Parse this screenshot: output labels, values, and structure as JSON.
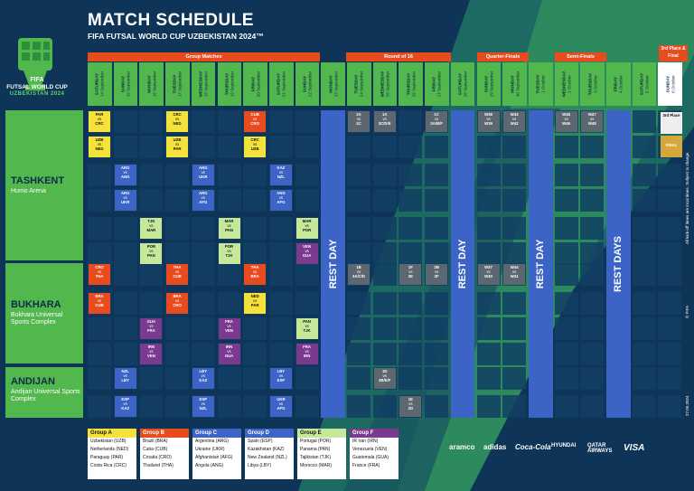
{
  "header": {
    "title": "MATCH SCHEDULE",
    "subtitle": "FIFA FUTSAL WORLD CUP UZBEKISTAN 2024™"
  },
  "logo": {
    "brand": "FIFA",
    "line1": "FUTSAL WORLD CUP",
    "line2": "UZBEKISTAN 2024"
  },
  "stages": {
    "group": "Group Matches",
    "r16": "Round of 16",
    "qf": "Quarter-Finals",
    "sf": "Semi-Finals",
    "final": "3rd Place & Final"
  },
  "days": [
    [
      "SATURDAY",
      "14 September"
    ],
    [
      "SUNDAY",
      "15 September"
    ],
    [
      "MONDAY",
      "16 September"
    ],
    [
      "TUESDAY",
      "17 September"
    ],
    [
      "WEDNESDAY",
      "18 September"
    ],
    [
      "THURSDAY",
      "19 September"
    ],
    [
      "FRIDAY",
      "20 September"
    ],
    [
      "SATURDAY",
      "21 September"
    ],
    [
      "SUNDAY",
      "22 September"
    ],
    [
      "MONDAY",
      "23 September"
    ],
    [
      "TUESDAY",
      "24 September"
    ],
    [
      "WEDNESDAY",
      "25 September"
    ],
    [
      "THURSDAY",
      "26 September"
    ],
    [
      "FRIDAY",
      "27 September"
    ],
    [
      "SATURDAY",
      "28 September"
    ],
    [
      "SUNDAY",
      "29 September"
    ],
    [
      "MONDAY",
      "30 September"
    ],
    [
      "TUESDAY",
      "1 October"
    ],
    [
      "WEDNESDAY",
      "2 October"
    ],
    [
      "THURSDAY",
      "3 October"
    ],
    [
      "FRIDAY",
      "4 October"
    ],
    [
      "SATURDAY",
      "5 October"
    ],
    [
      "SUNDAY",
      "6 October"
    ]
  ],
  "venues": [
    {
      "name": "TASHKENT",
      "sub": "Humo Arena"
    },
    {
      "name": "BUKHARA",
      "sub": "Bukhara Universal Sports Complex"
    },
    {
      "name": "ANDIJAN",
      "sub": "Andijan Universal Sports Complex"
    }
  ],
  "rest": {
    "day": "REST DAY",
    "days": "REST DAYS"
  },
  "colors": {
    "A": "#f4e23b",
    "B": "#e84b1e",
    "C": "#3c63c6",
    "D": "#3c63c6",
    "E": "#c5e89a",
    "F": "#7a3a8f",
    "KO": "#5c6770"
  },
  "matches": [
    {
      "d": 0,
      "r": 0,
      "t": "PAR vs CRC",
      "g": "A"
    },
    {
      "d": 0,
      "r": 1,
      "t": "UZB vs NED",
      "g": "A"
    },
    {
      "d": 3,
      "r": 0,
      "t": "CRC vs NED",
      "g": "A"
    },
    {
      "d": 3,
      "r": 1,
      "t": "UZB vs PAR",
      "g": "A"
    },
    {
      "d": 6,
      "r": 0,
      "t": "CUB vs CRO",
      "g": "B"
    },
    {
      "d": 6,
      "r": 1,
      "t": "CRC vs UZB",
      "g": "A"
    },
    {
      "d": 1,
      "r": 2,
      "t": "ARG vs ANG",
      "g": "C"
    },
    {
      "d": 1,
      "r": 3,
      "t": "ARG vs UKR",
      "g": "C"
    },
    {
      "d": 4,
      "r": 2,
      "t": "ANG vs UKR",
      "g": "C"
    },
    {
      "d": 4,
      "r": 3,
      "t": "ARG vs AFG",
      "g": "C"
    },
    {
      "d": 7,
      "r": 2,
      "t": "KAZ vs NZL",
      "g": "D"
    },
    {
      "d": 7,
      "r": 3,
      "t": "ANG vs AFG",
      "g": "C"
    },
    {
      "d": 2,
      "r": 4,
      "t": "TJK vs MAR",
      "g": "E"
    },
    {
      "d": 2,
      "r": 5,
      "t": "POR vs PAN",
      "g": "E"
    },
    {
      "d": 5,
      "r": 4,
      "t": "MAR vs PAN",
      "g": "E"
    },
    {
      "d": 5,
      "r": 5,
      "t": "POR vs TJK",
      "g": "E"
    },
    {
      "d": 8,
      "r": 4,
      "t": "MAR vs POR",
      "g": "E"
    },
    {
      "d": 8,
      "r": 5,
      "t": "VEN vs GUA",
      "g": "F"
    },
    {
      "d": 0,
      "r": 6,
      "t": "CRO vs THA",
      "g": "B"
    },
    {
      "d": 0,
      "r": 7,
      "t": "BRA vs CUB",
      "g": "B"
    },
    {
      "d": 3,
      "r": 6,
      "t": "THA vs CUB",
      "g": "B"
    },
    {
      "d": 3,
      "r": 7,
      "t": "BRA vs CRO",
      "g": "B"
    },
    {
      "d": 6,
      "r": 6,
      "t": "THA vs BRA",
      "g": "B"
    },
    {
      "d": 6,
      "r": 7,
      "t": "NED vs PAR",
      "g": "A"
    },
    {
      "d": 2,
      "r": 8,
      "t": "GUA vs FRA",
      "g": "F"
    },
    {
      "d": 2,
      "r": 9,
      "t": "IRN vs VEN",
      "g": "F"
    },
    {
      "d": 5,
      "r": 8,
      "t": "FRA vs VEN",
      "g": "F"
    },
    {
      "d": 5,
      "r": 9,
      "t": "IRN vs GUA",
      "g": "F"
    },
    {
      "d": 8,
      "r": 8,
      "t": "PAN vs TJK",
      "g": "E"
    },
    {
      "d": 8,
      "r": 9,
      "t": "FRA vs IRN",
      "g": "F"
    },
    {
      "d": 1,
      "r": 10,
      "t": "NZL vs LBY",
      "g": "D"
    },
    {
      "d": 1,
      "r": 11,
      "t": "ESP vs KAZ",
      "g": "D"
    },
    {
      "d": 4,
      "r": 10,
      "t": "LBY vs KAZ",
      "g": "D"
    },
    {
      "d": 4,
      "r": 11,
      "t": "ESP vs NZL",
      "g": "D"
    },
    {
      "d": 7,
      "r": 10,
      "t": "LBY vs ESP",
      "g": "D"
    },
    {
      "d": 7,
      "r": 11,
      "t": "UKR vs AFG",
      "g": "C"
    },
    {
      "d": 10,
      "r": 0,
      "t": "2A vs 2C",
      "g": "KO"
    },
    {
      "d": 11,
      "r": 0,
      "t": "1A vs 3C/D/E",
      "g": "KO"
    },
    {
      "d": 13,
      "r": 0,
      "t": "1C vs 3A/B/F",
      "g": "KO"
    },
    {
      "d": 15,
      "r": 0,
      "t": "W38 vs W39",
      "g": "KO"
    },
    {
      "d": 16,
      "r": 0,
      "t": "W43 vs W42",
      "g": "KO"
    },
    {
      "d": 18,
      "r": 0,
      "t": "W45 vs W46",
      "g": "KO"
    },
    {
      "d": 19,
      "r": 0,
      "t": "W47 vs W48",
      "g": "KO"
    },
    {
      "d": 10,
      "r": 6,
      "t": "1B vs 3A/C/D",
      "g": "KO"
    },
    {
      "d": 12,
      "r": 6,
      "t": "1F vs 2E",
      "g": "KO"
    },
    {
      "d": 13,
      "r": 6,
      "t": "2B vs 2F",
      "g": "KO"
    },
    {
      "d": 15,
      "r": 6,
      "t": "W37 vs W40",
      "g": "KO"
    },
    {
      "d": 16,
      "r": 6,
      "t": "W44 vs W41",
      "g": "KO"
    },
    {
      "d": 11,
      "r": 10,
      "t": "1D vs 3B/E/F",
      "g": "KO"
    },
    {
      "d": 12,
      "r": 11,
      "t": "1E vs 2D",
      "g": "KO"
    }
  ],
  "finals": {
    "third": "3rd Place",
    "final": "FINAL"
  },
  "groups": [
    {
      "name": "Group A",
      "teams": [
        "Uzbekistan (UZB)",
        "Netherlands (NED)",
        "Paraguay (PAR)",
        "Costa Rica (CRC)"
      ],
      "color": "#f4e23b"
    },
    {
      "name": "Group B",
      "teams": [
        "Brazil (BRA)",
        "Cuba (CUB)",
        "Croatia (CRO)",
        "Thailand (THA)"
      ],
      "color": "#e84b1e"
    },
    {
      "name": "Group C",
      "teams": [
        "Argentina (ARG)",
        "Ukraine (UKR)",
        "Afghanistan (AFG)",
        "Angola (ANG)"
      ],
      "color": "#3c63c6"
    },
    {
      "name": "Group D",
      "teams": [
        "Spain (ESP)",
        "Kazakhstan (KAZ)",
        "New Zealand (NZL)",
        "Libya (LBY)"
      ],
      "color": "#3c63c6"
    },
    {
      "name": "Group E",
      "teams": [
        "Portugal (POR)",
        "Panama (PAN)",
        "Tajikistan (TJK)",
        "Morocco (MAR)"
      ],
      "color": "#c5e89a"
    },
    {
      "name": "Group F",
      "teams": [
        "IR Iran (IRN)",
        "Venezuela (VEN)",
        "Guatemala (GUA)",
        "France (FRA)"
      ],
      "color": "#7a3a8f"
    }
  ],
  "sponsors": [
    "aramco",
    "adidas",
    "Coca-Cola",
    "HYUNDAI",
    "QATAR AIRWAYS",
    "VISA"
  ],
  "side": {
    "note": "All kick-off times are local times. Subject to change.",
    "copy": "© FIFA",
    "date": "27.05.2024"
  }
}
